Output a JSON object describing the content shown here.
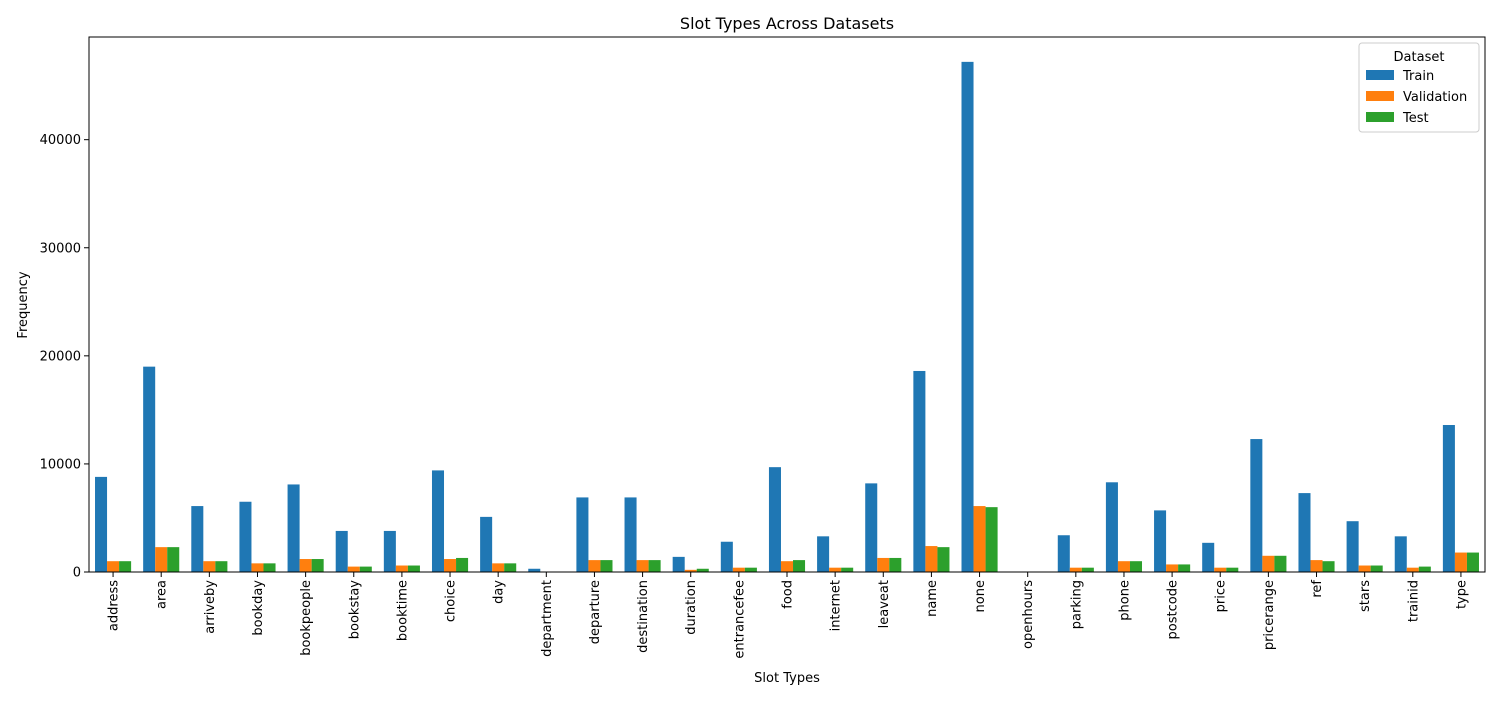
{
  "chart_data": {
    "type": "bar",
    "title": "Slot Types Across Datasets",
    "xlabel": "Slot Types",
    "ylabel": "Frequency",
    "ylim": [
      0,
      49500
    ],
    "yticks": [
      0,
      10000,
      20000,
      30000,
      40000
    ],
    "legend": {
      "title": "Dataset",
      "placement": "top-right"
    },
    "categories": [
      "address",
      "area",
      "arriveby",
      "bookday",
      "bookpeople",
      "bookstay",
      "booktime",
      "choice",
      "day",
      "department",
      "departure",
      "destination",
      "duration",
      "entrancefee",
      "food",
      "internet",
      "leaveat",
      "name",
      "none",
      "openhours",
      "parking",
      "phone",
      "postcode",
      "price",
      "pricerange",
      "ref",
      "stars",
      "trainid",
      "type"
    ],
    "series": [
      {
        "name": "Train",
        "color": "#1f77b4",
        "values": [
          8800,
          19000,
          6100,
          6500,
          8100,
          3800,
          3800,
          9400,
          5100,
          300,
          6900,
          6900,
          1400,
          2800,
          9700,
          3300,
          8200,
          18600,
          47200,
          0,
          3400,
          8300,
          5700,
          2700,
          12300,
          7300,
          4700,
          3300,
          13600
        ]
      },
      {
        "name": "Validation",
        "color": "#ff7f0e",
        "values": [
          1000,
          2300,
          1000,
          800,
          1200,
          500,
          600,
          1200,
          800,
          0,
          1100,
          1100,
          200,
          400,
          1000,
          400,
          1300,
          2400,
          6100,
          0,
          400,
          1000,
          700,
          400,
          1500,
          1100,
          600,
          400,
          1800
        ]
      },
      {
        "name": "Test",
        "color": "#2ca02c",
        "values": [
          1000,
          2300,
          1000,
          800,
          1200,
          500,
          600,
          1300,
          800,
          0,
          1100,
          1100,
          300,
          400,
          1100,
          400,
          1300,
          2300,
          6000,
          0,
          400,
          1000,
          700,
          400,
          1500,
          1000,
          600,
          500,
          1800
        ]
      }
    ]
  }
}
